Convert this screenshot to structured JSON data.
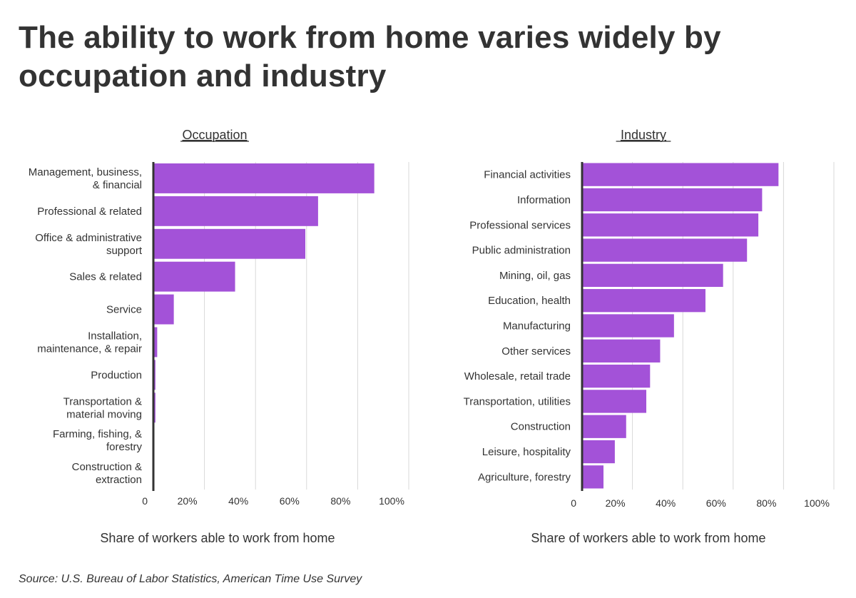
{
  "title": "The ability to work from home varies widely by occupation and industry",
  "source": "Source: U.S. Bureau of Labor Statistics, American Time Use Survey",
  "colors": {
    "bar": "#a352d8",
    "axis": "#333333",
    "grid": "#d9d9d9",
    "text": "#333333"
  },
  "chart_data": [
    {
      "type": "bar",
      "orientation": "horizontal",
      "title": "Occupation",
      "xlabel": "Share of workers able to work from home",
      "xlim": [
        0,
        100
      ],
      "ticks": [
        {
          "value": 0,
          "label": "0"
        },
        {
          "value": 20,
          "label": "20%"
        },
        {
          "value": 40,
          "label": "40%"
        },
        {
          "value": 60,
          "label": "60%"
        },
        {
          "value": 80,
          "label": "80%"
        },
        {
          "value": 100,
          "label": "100%"
        }
      ],
      "grid": true,
      "categories": [
        [
          "Management, business,",
          "& financial"
        ],
        [
          "Professional & related"
        ],
        [
          "Office & administrative",
          "support"
        ],
        [
          "Sales & related"
        ],
        [
          "Service"
        ],
        [
          "Installation,",
          "maintenance, & repair"
        ],
        [
          "Production"
        ],
        [
          "Transportation &",
          "material moving"
        ],
        [
          "Farming, fishing, &",
          "forestry"
        ],
        [
          "Construction &",
          "extraction"
        ]
      ],
      "values": [
        86.5,
        64.5,
        59.5,
        32,
        8,
        1.5,
        0.8,
        0.8,
        0,
        0
      ]
    },
    {
      "type": "bar",
      "orientation": "horizontal",
      "title": "Industry",
      "xlabel": "Share of workers able to work from home",
      "xlim": [
        0,
        100
      ],
      "ticks": [
        {
          "value": 0,
          "label": "0"
        },
        {
          "value": 20,
          "label": "20%"
        },
        {
          "value": 40,
          "label": "40%"
        },
        {
          "value": 60,
          "label": "60%"
        },
        {
          "value": 80,
          "label": "80%"
        },
        {
          "value": 100,
          "label": "100%"
        }
      ],
      "grid": true,
      "categories": [
        [
          "Financial activities"
        ],
        [
          "Information"
        ],
        [
          "Professional services"
        ],
        [
          "Public administration"
        ],
        [
          "Mining, oil, gas"
        ],
        [
          "Education, health"
        ],
        [
          "Manufacturing"
        ],
        [
          "Other services"
        ],
        [
          "Wholesale, retail trade"
        ],
        [
          "Transportation, utilities"
        ],
        [
          "Construction"
        ],
        [
          "Leisure, hospitality"
        ],
        [
          "Agriculture, forestry"
        ]
      ],
      "values": [
        78,
        71.5,
        70,
        65.5,
        56,
        49,
        36.5,
        31,
        27,
        25.5,
        17.5,
        13,
        8.5
      ]
    }
  ]
}
